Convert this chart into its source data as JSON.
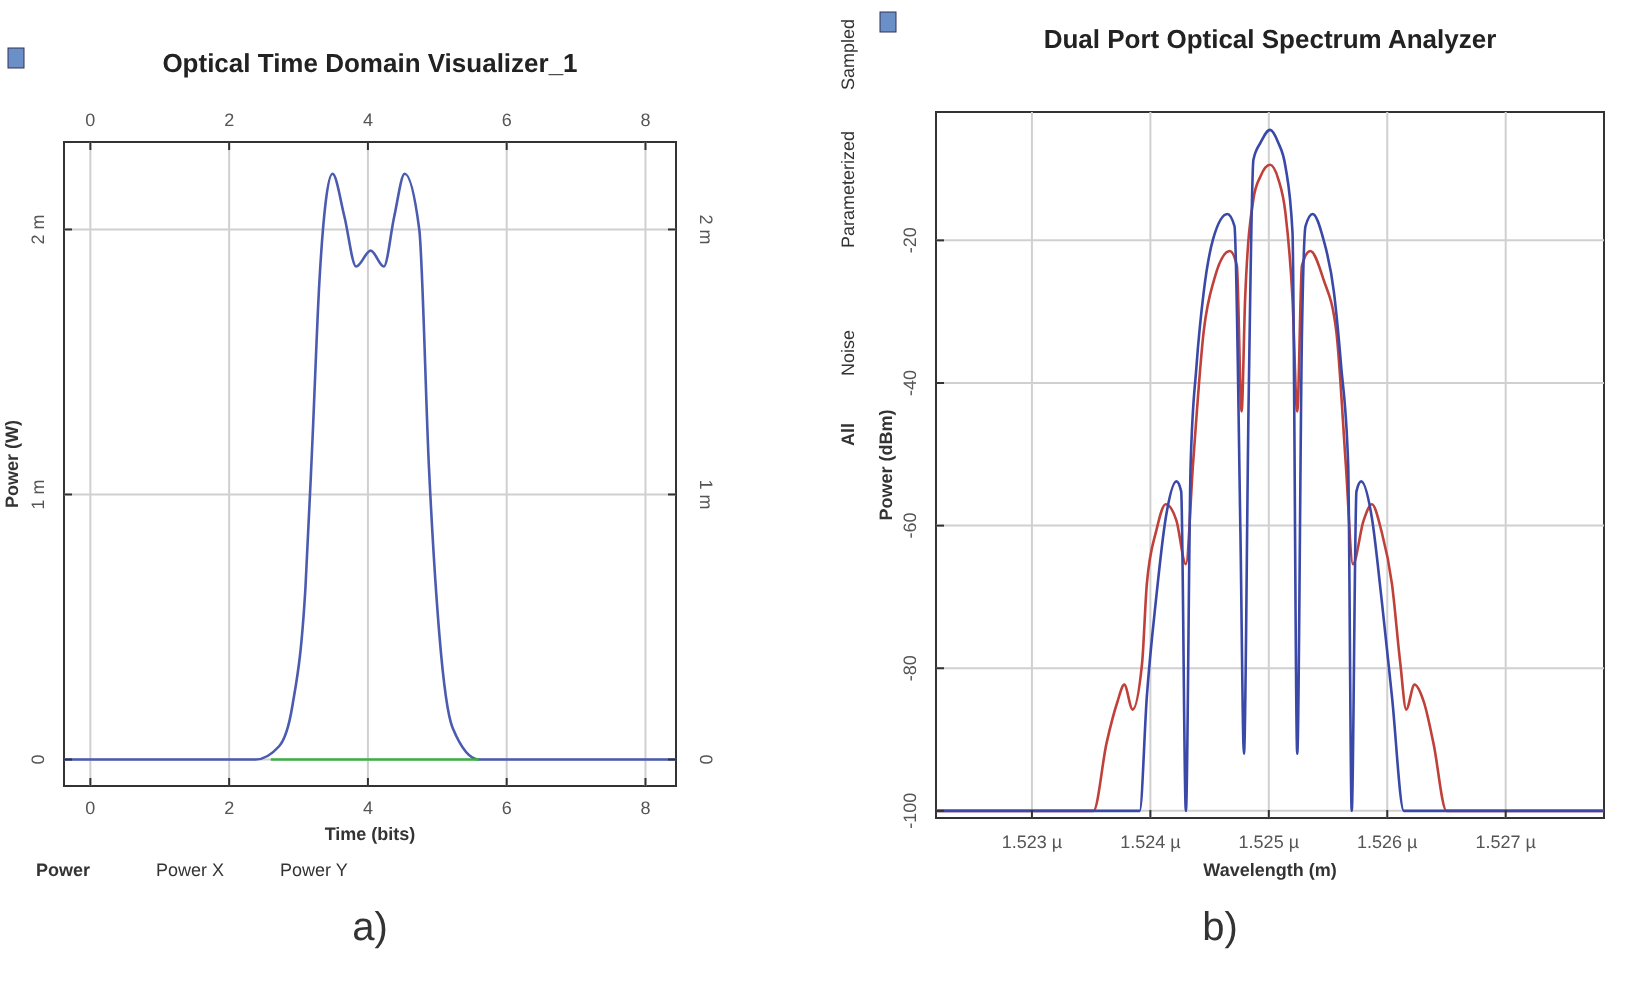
{
  "chart_data": [
    {
      "type": "line",
      "title": "Optical Time Domain Visualizer_1",
      "xlabel": "Time (bits)",
      "ylabel": "Power (W)",
      "grid": true,
      "xlim": [
        -0.38,
        8.44
      ],
      "xticks": [
        0,
        2,
        4,
        6,
        8
      ],
      "x2lim": [
        -0.38,
        8.44
      ],
      "x2ticks": [
        0,
        2,
        4,
        6,
        8
      ],
      "ylim": [
        -0.1,
        2.33
      ],
      "yticks": [
        0,
        {
          "value": 1,
          "label": "1 m"
        },
        {
          "value": 2,
          "label": "2 m"
        }
      ],
      "y2lim": [
        -0.1,
        2.33
      ],
      "y2ticks": [
        0,
        {
          "value": 1,
          "label": "1 m"
        },
        {
          "value": 2,
          "label": "2 m"
        }
      ],
      "series": [
        {
          "color": "#4a5bb0",
          "x": [
            -0.38,
            2.38,
            2.72,
            2.91,
            3.1,
            3.2,
            3.3,
            3.39,
            3.49,
            3.66,
            3.83,
            4.04,
            4.23,
            4.38,
            4.53,
            4.74,
            4.88,
            5.03,
            5.22,
            5.6,
            8.44
          ],
          "values": [
            0,
            0,
            0.05,
            0.2,
            0.65,
            1.2,
            1.8,
            2.1,
            2.21,
            2.05,
            1.86,
            1.92,
            1.86,
            2.05,
            2.21,
            2.0,
            1.1,
            0.47,
            0.12,
            0,
            0
          ]
        },
        {
          "color": "#3cb043",
          "x": [
            2.6,
            5.6
          ],
          "values": [
            0,
            0
          ]
        }
      ],
      "annotations": [
        "Power",
        "Power X",
        "Power Y",
        "a)"
      ]
    },
    {
      "type": "line",
      "title": "Dual Port Optical Spectrum Analyzer",
      "xlabel": "Wavelength (m)",
      "ylabel": "Power (dBm)",
      "grid": true,
      "xlim": [
        1.52219,
        1.52783
      ],
      "xticks": [
        {
          "value": 1.523,
          "label": "1.523 µ"
        },
        {
          "value": 1.524,
          "label": "1.524 µ"
        },
        {
          "value": 1.525,
          "label": "1.525 µ"
        },
        {
          "value": 1.526,
          "label": "1.526 µ"
        },
        {
          "value": 1.527,
          "label": "1.527 µ"
        }
      ],
      "ylim": [
        -101,
        -2
      ],
      "yticks": [
        -100,
        -80,
        -60,
        -40,
        -20
      ],
      "series": [
        {
          "color": "#c0403a",
          "x": [
            1.52219,
            1.52352,
            1.52363,
            1.52372,
            1.52378,
            1.52385,
            1.52393,
            1.52397,
            1.52405,
            1.52413,
            1.52422,
            1.5243,
            1.52436,
            1.52445,
            1.52454,
            1.52467,
            1.52473,
            1.52477,
            1.5248,
            1.52487,
            1.52493,
            1.52501,
            1.52508,
            1.52514,
            1.5252,
            1.52524,
            1.52528,
            1.52535,
            1.52546,
            1.52557,
            1.52565,
            1.52571,
            1.5258,
            1.52587,
            1.52595,
            1.52604,
            1.52611,
            1.52616,
            1.52623,
            1.52631,
            1.52639,
            1.5265,
            1.52783
          ],
          "values": [
            -100,
            -100,
            -90.5,
            -84.8,
            -82.3,
            -85.8,
            -79.3,
            -68.2,
            -60.7,
            -57,
            -59.3,
            -65.4,
            -51.4,
            -32.8,
            -25.4,
            -21.5,
            -23.5,
            -44,
            -28.2,
            -14.2,
            -11,
            -9.4,
            -11.4,
            -16.1,
            -28.2,
            -44,
            -23.5,
            -21.5,
            -25.4,
            -32.8,
            -51.4,
            -65.4,
            -59.3,
            -57,
            -60.7,
            -68.2,
            -79.3,
            -85.8,
            -82.3,
            -84.8,
            -90.5,
            -100,
            -100
          ]
        },
        {
          "color": "#3a48a8",
          "x": [
            1.52219,
            1.52391,
            1.52397,
            1.52405,
            1.52413,
            1.52422,
            1.52426,
            1.5243,
            1.52434,
            1.52439,
            1.52445,
            1.52453,
            1.52465,
            1.52471,
            1.52476,
            1.52479,
            1.52483,
            1.52487,
            1.52493,
            1.52501,
            1.52508,
            1.52514,
            1.5252,
            1.52524,
            1.52528,
            1.52531,
            1.52537,
            1.52546,
            1.52555,
            1.52561,
            1.52567,
            1.5257,
            1.52574,
            1.52578,
            1.52587,
            1.52595,
            1.52604,
            1.52614,
            1.52783
          ],
          "values": [
            -100,
            -100,
            -84,
            -70,
            -58.9,
            -53.8,
            -55.2,
            -100,
            -51.4,
            -37.5,
            -27.3,
            -19.8,
            -16.3,
            -18,
            -60.7,
            -92,
            -42,
            -8.7,
            -6.3,
            -4.5,
            -6.3,
            -9.6,
            -18.9,
            -92,
            -32.8,
            -18,
            -16.3,
            -19.8,
            -27.3,
            -37.5,
            -51.4,
            -100,
            -55.2,
            -53.8,
            -58.9,
            -70,
            -84,
            -100,
            -100
          ]
        }
      ],
      "annotations": [
        "Sampled",
        "Parameterized",
        "Noise",
        "All",
        "b)"
      ]
    }
  ]
}
